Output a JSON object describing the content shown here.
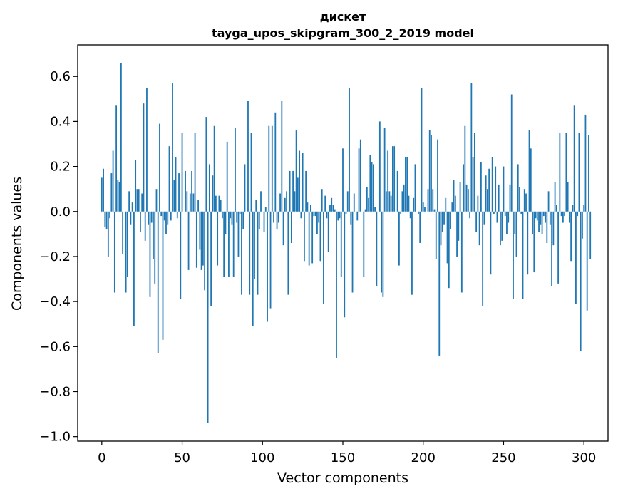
{
  "chart_data": {
    "type": "bar",
    "title_line1": "диcкет",
    "title_line2": "tayga_upos_skipgram_300_2_2019 model",
    "xlabel": "Vector components",
    "ylabel": "Components values",
    "xlim": [
      -15,
      315
    ],
    "ylim": [
      -1.02,
      0.74
    ],
    "x_ticks": [
      0,
      50,
      100,
      150,
      200,
      250,
      300
    ],
    "x_tick_labels": [
      "0",
      "50",
      "100",
      "150",
      "200",
      "250",
      "300"
    ],
    "y_ticks": [
      0.6,
      0.4,
      0.2,
      0.0,
      -0.2,
      -0.4,
      -0.6,
      -0.8,
      -1.0
    ],
    "y_tick_labels": [
      "0.6",
      "0.4",
      "0.2",
      "0.0",
      "−0.2",
      "−0.4",
      "−0.6",
      "−0.8",
      "−1.0"
    ],
    "bar_color": "#1f77b4",
    "grid": false,
    "values": [
      0.15,
      0.19,
      -0.07,
      -0.08,
      -0.2,
      -0.03,
      0.17,
      0.27,
      -0.36,
      0.47,
      0.14,
      0.13,
      0.66,
      -0.19,
      0.0,
      -0.36,
      -0.29,
      0.09,
      -0.06,
      0.04,
      -0.51,
      0.23,
      0.1,
      0.1,
      -0.09,
      0.08,
      0.48,
      -0.13,
      0.55,
      -0.06,
      -0.38,
      -0.05,
      -0.21,
      -0.32,
      0.1,
      -0.63,
      0.39,
      -0.02,
      -0.57,
      -0.04,
      -0.1,
      -0.06,
      0.29,
      -0.04,
      0.57,
      0.14,
      0.24,
      -0.03,
      0.17,
      -0.39,
      0.35,
      0.0,
      0.18,
      0.09,
      -0.26,
      0.08,
      0.18,
      0.08,
      0.35,
      -0.25,
      0.05,
      -0.17,
      -0.26,
      -0.24,
      -0.35,
      0.42,
      -0.94,
      0.21,
      -0.42,
      0.16,
      0.38,
      0.07,
      -0.24,
      0.07,
      0.05,
      -0.03,
      -0.29,
      -0.1,
      0.31,
      -0.29,
      -0.03,
      -0.06,
      -0.29,
      0.37,
      -0.05,
      -0.2,
      -0.01,
      -0.37,
      -0.08,
      0.21,
      0.0,
      0.49,
      -0.37,
      0.35,
      -0.51,
      -0.3,
      0.05,
      -0.37,
      -0.08,
      0.09,
      0.0,
      -0.09,
      0.02,
      -0.49,
      0.38,
      -0.43,
      0.38,
      -0.05,
      0.44,
      -0.08,
      -0.05,
      0.08,
      0.49,
      -0.15,
      0.06,
      0.09,
      -0.37,
      0.18,
      -0.14,
      0.18,
      0.09,
      0.36,
      0.15,
      0.27,
      -0.03,
      0.26,
      -0.22,
      0.18,
      0.04,
      -0.24,
      0.03,
      -0.23,
      -0.02,
      -0.02,
      -0.1,
      -0.05,
      -0.22,
      0.1,
      -0.41,
      0.07,
      -0.03,
      -0.18,
      0.03,
      0.06,
      0.03,
      0.01,
      -0.65,
      -0.04,
      -0.03,
      -0.29,
      0.28,
      -0.47,
      -0.01,
      0.09,
      0.55,
      -0.06,
      -0.36,
      0.08,
      0.0,
      -0.04,
      0.28,
      0.32,
      0.0,
      -0.29,
      0.01,
      0.11,
      0.06,
      0.25,
      0.22,
      0.21,
      0.02,
      -0.33,
      0.0,
      0.4,
      -0.36,
      -0.38,
      0.37,
      0.09,
      0.27,
      0.09,
      0.07,
      0.29,
      0.29,
      0.0,
      0.18,
      -0.24,
      -0.01,
      0.09,
      0.12,
      0.24,
      0.24,
      0.07,
      -0.03,
      -0.37,
      0.06,
      0.21,
      0.0,
      -0.01,
      -0.14,
      0.55,
      0.04,
      0.02,
      0.0,
      0.1,
      0.36,
      0.34,
      0.1,
      0.01,
      -0.21,
      0.32,
      -0.64,
      -0.15,
      -0.09,
      -0.06,
      0.06,
      -0.23,
      -0.34,
      -0.08,
      0.04,
      0.14,
      0.07,
      -0.2,
      -0.13,
      0.13,
      -0.36,
      0.21,
      0.38,
      0.12,
      0.1,
      -0.03,
      0.57,
      0.24,
      0.35,
      -0.09,
      0.07,
      -0.15,
      0.22,
      -0.42,
      -0.06,
      0.16,
      0.1,
      0.19,
      -0.28,
      0.24,
      -0.01,
      0.2,
      -0.05,
      0.12,
      -0.15,
      -0.13,
      0.2,
      -0.02,
      -0.1,
      -0.05,
      0.12,
      0.52,
      -0.39,
      -0.1,
      -0.2,
      0.21,
      0.11,
      -0.01,
      -0.39,
      0.1,
      0.08,
      -0.28,
      0.36,
      0.28,
      -0.1,
      -0.27,
      -0.03,
      -0.04,
      -0.09,
      -0.06,
      -0.1,
      -0.02,
      -0.05,
      -0.14,
      0.09,
      -0.06,
      -0.33,
      -0.15,
      0.13,
      0.03,
      -0.32,
      0.35,
      -0.02,
      -0.05,
      -0.02,
      0.35,
      0.13,
      -0.05,
      -0.22,
      0.03,
      0.47,
      -0.41,
      -0.02,
      0.35,
      -0.62,
      -0.12,
      0.03,
      0.43,
      -0.44,
      0.34,
      -0.21
    ]
  }
}
